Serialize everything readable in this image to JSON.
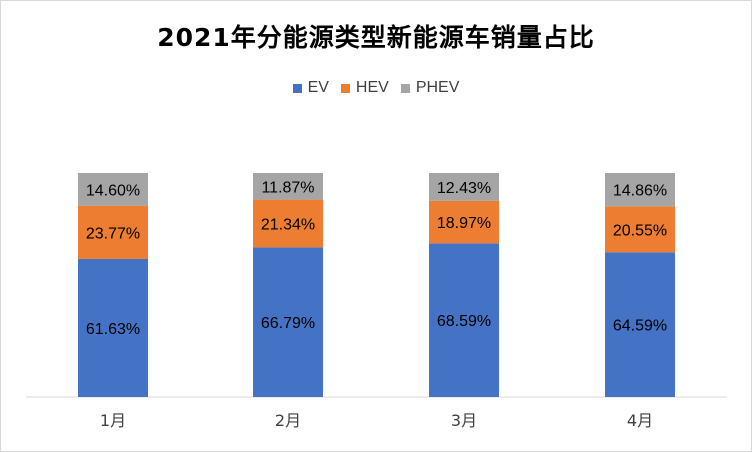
{
  "chart_data": {
    "type": "bar",
    "stacked": true,
    "percent_stacked": true,
    "title": "2021年分能源类型新能源车销量占比",
    "categories": [
      "1月",
      "2月",
      "3月",
      "4月"
    ],
    "series": [
      {
        "name": "EV",
        "color": "#4472c4",
        "values": [
          61.63,
          66.79,
          68.59,
          64.59
        ],
        "labels": [
          "61.63%",
          "66.79%",
          "68.59%",
          "64.59%"
        ]
      },
      {
        "name": "HEV",
        "color": "#ed7d31",
        "values": [
          23.77,
          21.34,
          18.97,
          20.55
        ],
        "labels": [
          "23.77%",
          "21.34%",
          "18.97%",
          "20.55%"
        ]
      },
      {
        "name": "PHEV",
        "color": "#a5a5a5",
        "values": [
          14.6,
          11.87,
          12.43,
          14.86
        ],
        "labels": [
          "14.60%",
          "11.87%",
          "12.43%",
          "14.86%"
        ]
      }
    ],
    "ylim": [
      0,
      100
    ],
    "legend_position": "top",
    "grid": false
  }
}
